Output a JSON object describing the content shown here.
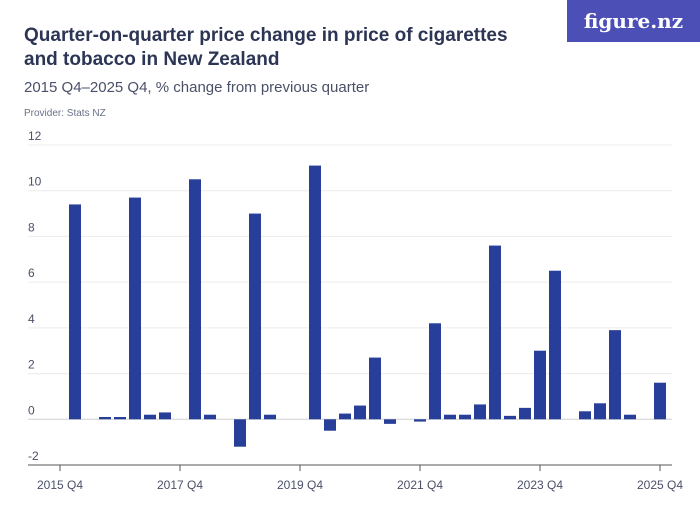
{
  "header": {
    "title": "Quarter-on-quarter price change in price of cigarettes and tobacco in New Zealand",
    "subtitle": "2015 Q4–2025 Q4, % change from previous quarter",
    "provider": "Provider: Stats NZ",
    "logo": "figure.nz"
  },
  "colors": {
    "bar": "#283f9a",
    "logo_bg": "#4b4fb6"
  },
  "chart_data": {
    "type": "bar",
    "title": "Quarter-on-quarter price change in price of cigarettes and tobacco in New Zealand",
    "ylim": [
      -2,
      12
    ],
    "yticks": [
      -2,
      0,
      2,
      4,
      6,
      8,
      10,
      12
    ],
    "xtick_labels": [
      "2015 Q4",
      "2017 Q4",
      "2019 Q4",
      "2021 Q4",
      "2023 Q4",
      "2025 Q4"
    ],
    "grid": true,
    "categories": [
      "2015 Q4",
      "2016 Q1",
      "2016 Q2",
      "2016 Q3",
      "2016 Q4",
      "2017 Q1",
      "2017 Q2",
      "2017 Q3",
      "2017 Q4",
      "2018 Q1",
      "2018 Q2",
      "2018 Q3",
      "2018 Q4",
      "2019 Q1",
      "2019 Q2",
      "2019 Q3",
      "2019 Q4",
      "2020 Q1",
      "2020 Q2",
      "2020 Q3",
      "2020 Q4",
      "2021 Q1",
      "2021 Q2",
      "2021 Q3",
      "2021 Q4",
      "2022 Q1",
      "2022 Q2",
      "2022 Q3",
      "2022 Q4",
      "2023 Q1",
      "2023 Q2",
      "2023 Q3",
      "2023 Q4",
      "2024 Q1",
      "2024 Q2",
      "2024 Q3",
      "2024 Q4",
      "2025 Q1",
      "2025 Q2",
      "2025 Q3",
      "2025 Q4"
    ],
    "values": [
      0,
      9.4,
      0,
      0.1,
      0.1,
      9.7,
      0.2,
      0.3,
      0,
      10.5,
      0.2,
      0,
      -1.2,
      9.0,
      0.2,
      0,
      0,
      11.1,
      -0.5,
      0.25,
      0.6,
      2.7,
      -0.2,
      0,
      -0.1,
      4.2,
      0.2,
      0.2,
      0.65,
      7.6,
      0.15,
      0.5,
      3.0,
      6.5,
      0,
      0.35,
      0.7,
      3.9,
      0.2,
      0,
      1.6
    ]
  }
}
